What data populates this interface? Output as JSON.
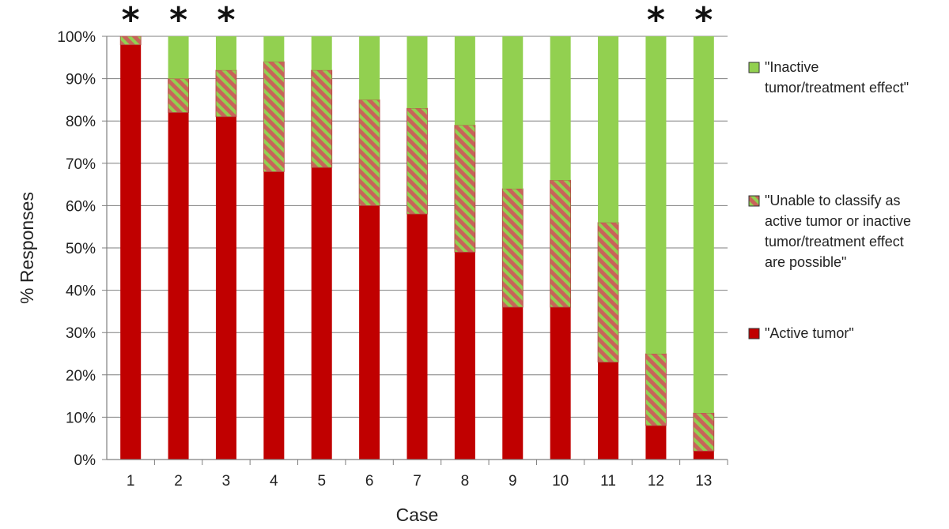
{
  "chart_data": {
    "type": "bar",
    "stacked": true,
    "xlabel": "Case",
    "ylabel": "% Responses",
    "ylim": [
      0,
      100
    ],
    "yticks": [
      "0%",
      "10%",
      "20%",
      "30%",
      "40%",
      "50%",
      "60%",
      "70%",
      "80%",
      "90%",
      "100%"
    ],
    "categories": [
      "1",
      "2",
      "3",
      "4",
      "5",
      "6",
      "7",
      "8",
      "9",
      "10",
      "11",
      "12",
      "13"
    ],
    "series": [
      {
        "name": "\"Active tumor\"",
        "values": [
          98,
          82,
          81,
          68,
          69,
          60,
          58,
          49,
          36,
          36,
          23,
          8,
          2
        ]
      },
      {
        "name": "\"Unable to classify as active tumor or inactive tumor/treatment effect are possible\"",
        "values": [
          2,
          8,
          11,
          26,
          23,
          25,
          25,
          30,
          28,
          30,
          33,
          17,
          9
        ]
      },
      {
        "name": "\"Inactive tumor/treatment effect\"",
        "values": [
          0,
          10,
          8,
          6,
          8,
          15,
          17,
          21,
          36,
          34,
          44,
          75,
          89
        ]
      }
    ],
    "marked_categories": [
      "1",
      "2",
      "3",
      "12",
      "13"
    ],
    "marker_symbol": "*",
    "legend": {
      "placement": "right",
      "entries": [
        {
          "series": 2,
          "lines": [
            "\"Inactive",
            "tumor/treatment effect\""
          ]
        },
        {
          "series": 1,
          "lines": [
            "\"Unable to classify as",
            "active tumor or inactive",
            "tumor/treatment effect",
            "are possible\""
          ]
        },
        {
          "series": 0,
          "lines": [
            "\"Active tumor\""
          ]
        }
      ]
    },
    "colors": {
      "active": "#c00000",
      "unable_base": "#c8645a",
      "unable_stripe": "#92d050",
      "inactive": "#92d050",
      "grid": "#7f7f7f",
      "bar_edge": "#7f7f7f"
    },
    "grid": true
  }
}
